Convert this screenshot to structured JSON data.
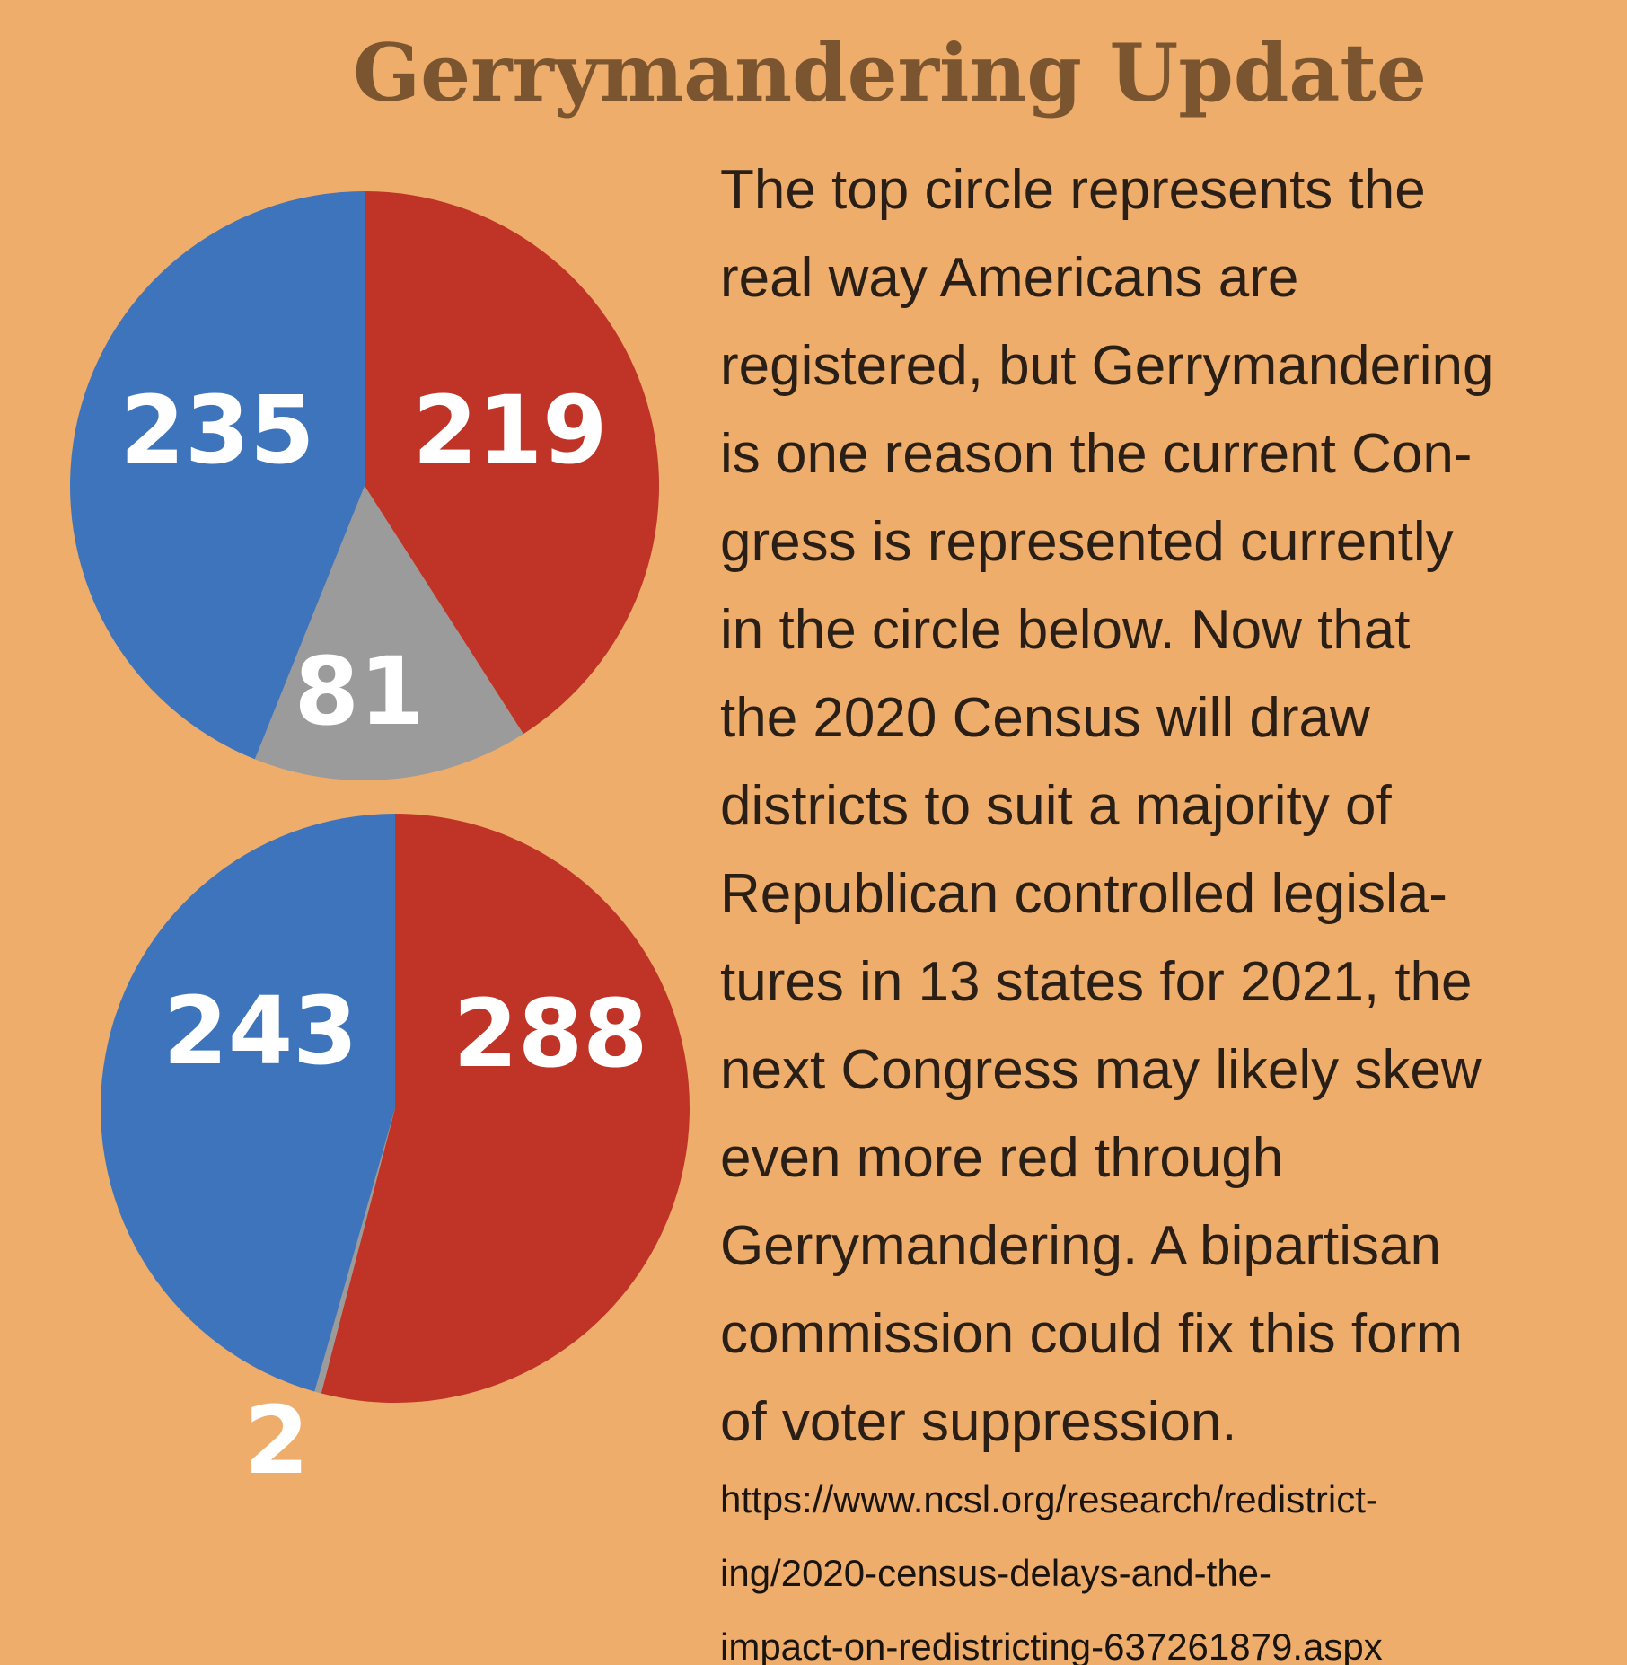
{
  "title": "Gerrymandering Update",
  "body": [
    "The top circle represents the",
    "real way Americans are",
    "registered, but Gerrymandering",
    "is one reason the current Con-",
    "gress is represented currently",
    "in the circle below. Now that",
    "the 2020 Census will draw",
    "districts to suit a majority of",
    "Republican controlled legisla-",
    "tures in 13 states for 2021, the",
    "next Congress may likely skew",
    "even more red through",
    "Gerrymandering. A bipartisan",
    "commission could fix this form",
    "of voter suppression."
  ],
  "source": [
    "https://www.ncsl.org/research/redistrict-",
    "ing/2020-census-delays-and-the-",
    "impact-on-redistricting-637261879.aspx"
  ],
  "chart_data": [
    {
      "type": "pie",
      "values": [
        219,
        81,
        235
      ],
      "colors": [
        "#bf3427",
        "#9b9b9b",
        "#3d74bb"
      ]
    },
    {
      "type": "pie",
      "values": [
        288,
        2,
        243
      ],
      "colors": [
        "#bf3427",
        "#9b9b9b",
        "#3d74bb"
      ]
    }
  ]
}
